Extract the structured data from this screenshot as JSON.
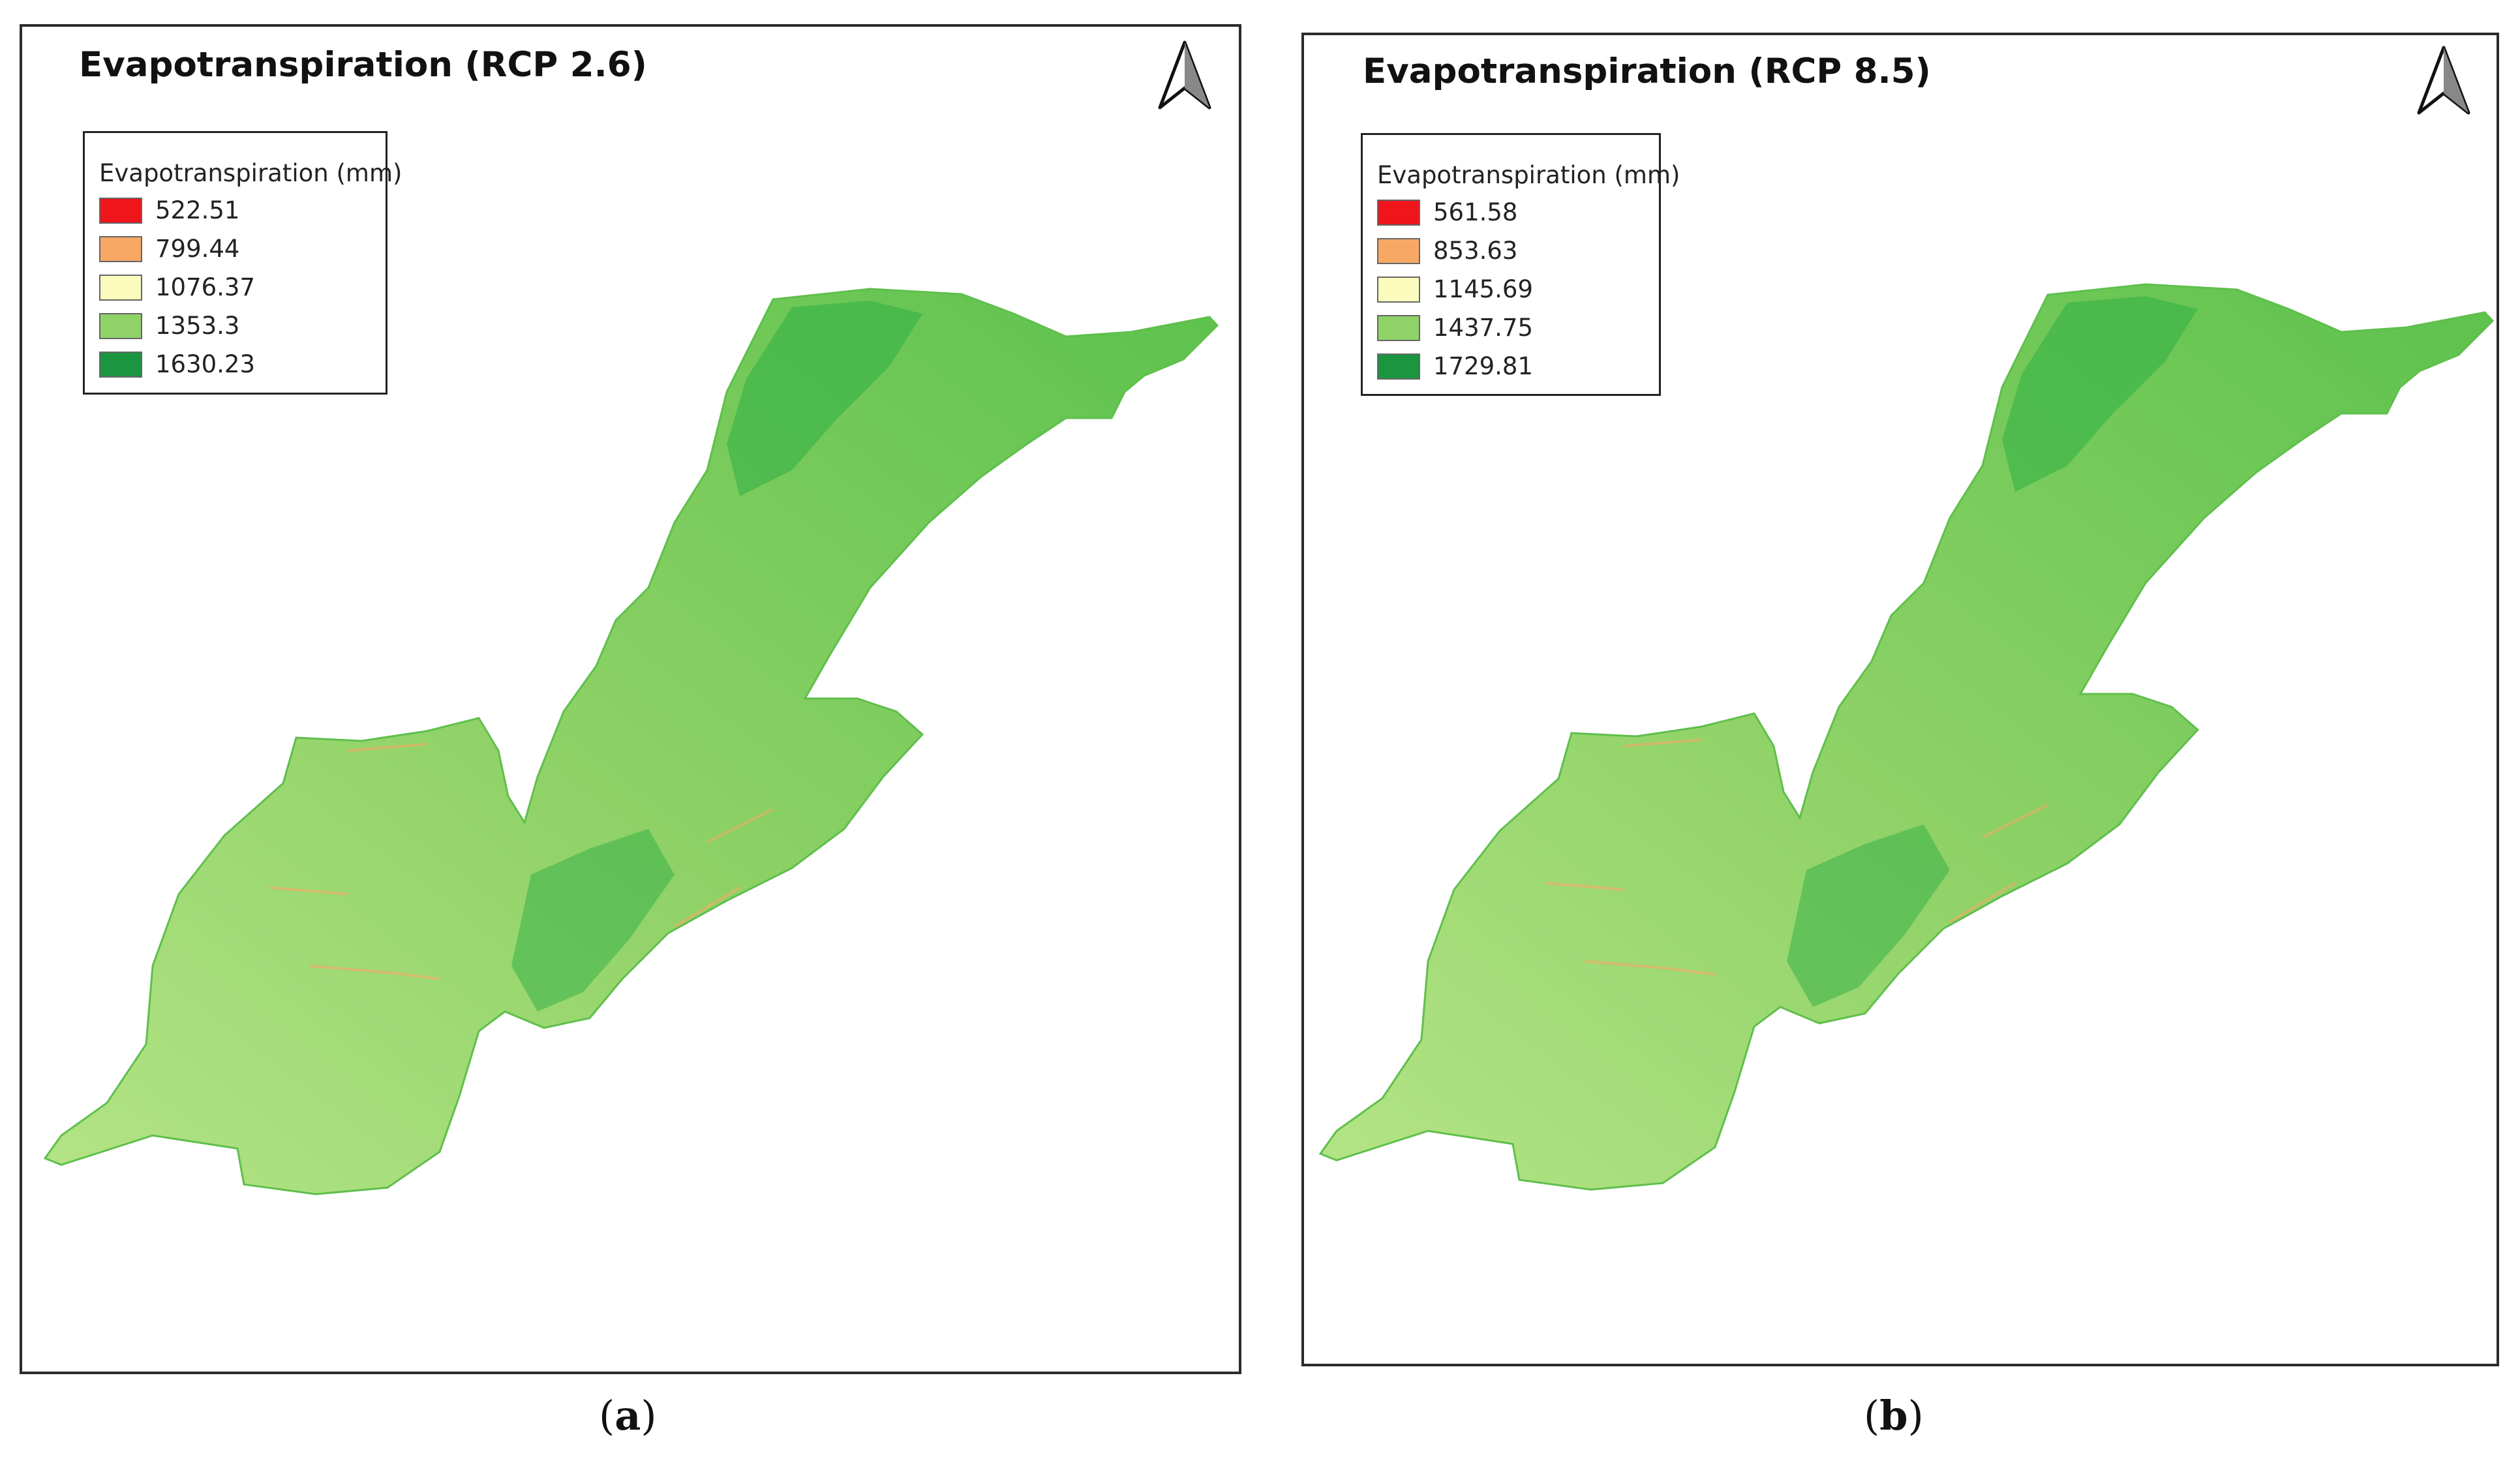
{
  "panels": [
    {
      "title": "Evapotranspiration (RCP 2.6)",
      "legend": {
        "title": "Evapotranspiration (mm)",
        "items": [
          {
            "label": "522.51",
            "color": "#f0141b"
          },
          {
            "label": "799.44",
            "color": "#f7a865"
          },
          {
            "label": "1076.37",
            "color": "#fbfbbe"
          },
          {
            "label": "1353.3",
            "color": "#8fd267"
          },
          {
            "label": "1630.23",
            "color": "#1a9641"
          }
        ]
      },
      "caption": {
        "open": "(",
        "letter": "a",
        "close": ")"
      }
    },
    {
      "title": "Evapotranspiration (RCP 8.5)",
      "legend": {
        "title": "Evapotranspiration (mm)",
        "items": [
          {
            "label": "561.58",
            "color": "#f0141b"
          },
          {
            "label": "853.63",
            "color": "#f7a865"
          },
          {
            "label": "1145.69",
            "color": "#fbfbbe"
          },
          {
            "label": "1437.75",
            "color": "#8fd267"
          },
          {
            "label": "1729.81",
            "color": "#1a9641"
          }
        ]
      },
      "caption": {
        "open": "(",
        "letter": "b",
        "close": ")"
      }
    }
  ],
  "colors": {
    "region_fill": "#7dd35a",
    "region_dark": "#2fae45",
    "region_light": "#b5e486",
    "ridge_hint": "#f7a865"
  },
  "icons": {
    "north_arrow": "north-arrow-icon"
  }
}
